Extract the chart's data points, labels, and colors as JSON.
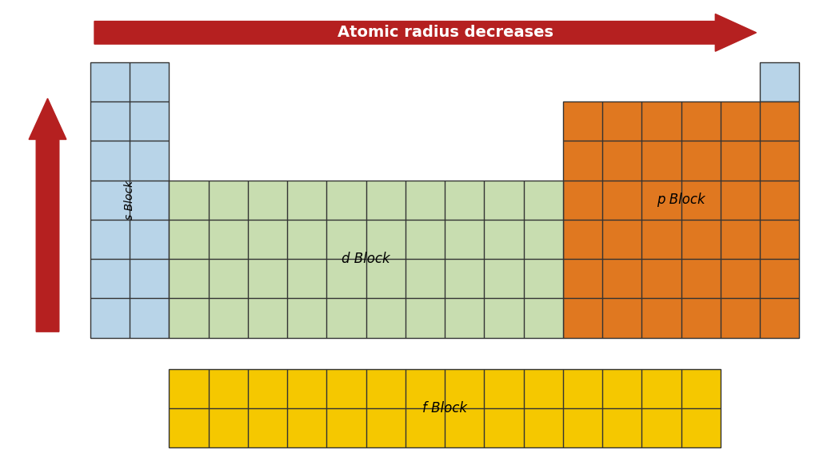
{
  "bg_color": "#ffffff",
  "s_block_color": "#b8d4e8",
  "d_block_color": "#c8ddb0",
  "p_block_color": "#e07820",
  "f_block_color": "#f5c800",
  "grid_color": "#333333",
  "arrow_color": "#b52020",
  "s_label": "s Block",
  "d_label": "d Block",
  "p_label": "p Block",
  "f_label": "f Block",
  "h_arrow_label": "Atomic radius decreases"
}
